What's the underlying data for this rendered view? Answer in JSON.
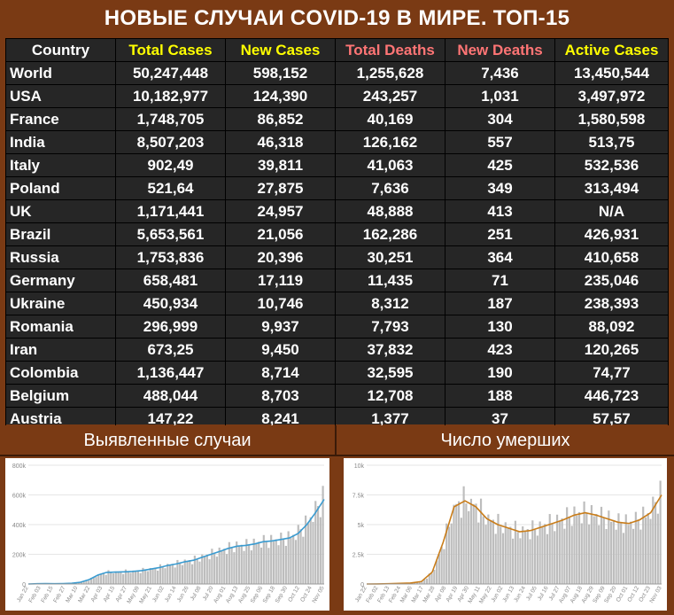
{
  "title": "НОВЫЕ СЛУЧАИ COVID-19 В МИРЕ. ТОП-15",
  "colors": {
    "background": "#7a3a14",
    "table_bg": "#262626",
    "header_country": "#ffffff",
    "header_cases": "#ffff00",
    "header_deaths": "#ff7575",
    "header_active": "#ffff00",
    "cases_line": "#3a9bd0",
    "deaths_line": "#c97d1a",
    "bars": "#b5b5b5"
  },
  "table": {
    "headers": [
      "Country",
      "Total Cases",
      "New Cases",
      "Total Deaths",
      "New Deaths",
      "Active Cases"
    ],
    "rows": [
      [
        "World",
        "50,247,448",
        "598,152",
        "1,255,628",
        "7,436",
        "13,450,544"
      ],
      [
        "USA",
        "10,182,977",
        "124,390",
        "243,257",
        "1,031",
        "3,497,972"
      ],
      [
        "France",
        "1,748,705",
        "86,852",
        "40,169",
        "304",
        "1,580,598"
      ],
      [
        "India",
        "8,507,203",
        "46,318",
        "126,162",
        "557",
        "513,75"
      ],
      [
        "Italy",
        "902,49",
        "39,811",
        "41,063",
        "425",
        "532,536"
      ],
      [
        "Poland",
        "521,64",
        "27,875",
        "7,636",
        "349",
        "313,494"
      ],
      [
        "UK",
        "1,171,441",
        "24,957",
        "48,888",
        "413",
        "N/A"
      ],
      [
        "Brazil",
        "5,653,561",
        "21,056",
        "162,286",
        "251",
        "426,931"
      ],
      [
        "Russia",
        "1,753,836",
        "20,396",
        "30,251",
        "364",
        "410,658"
      ],
      [
        "Germany",
        "658,481",
        "17,119",
        "11,435",
        "71",
        "235,046"
      ],
      [
        "Ukraine",
        "450,934",
        "10,746",
        "8,312",
        "187",
        "238,393"
      ],
      [
        "Romania",
        "296,999",
        "9,937",
        "7,793",
        "130",
        "88,092"
      ],
      [
        "Iran",
        "673,25",
        "9,450",
        "37,832",
        "423",
        "120,265"
      ],
      [
        "Colombia",
        "1,136,447",
        "8,714",
        "32,595",
        "190",
        "74,77"
      ],
      [
        "Belgium",
        "488,044",
        "8,703",
        "12,708",
        "188",
        "446,723"
      ],
      [
        "Austria",
        "147,22",
        "8,241",
        "1,377",
        "37",
        "57,57"
      ]
    ]
  },
  "chart_data": [
    {
      "type": "bar",
      "title": "Выявленные случаи",
      "xlabel": "",
      "ylabel": "",
      "ylim": [
        0,
        800000
      ],
      "yticks": [
        "0",
        "200k",
        "400k",
        "600k",
        "800k"
      ],
      "ytick_values": [
        0,
        200000,
        400000,
        600000,
        800000
      ],
      "grid": true,
      "x_ticks": [
        "Jan 22",
        "Feb 03",
        "Feb 15",
        "Feb 27",
        "Mar 10",
        "Mar 22",
        "Apr 03",
        "Apr 15",
        "Apr 27",
        "May 09",
        "May 21",
        "Jun 02",
        "Jun 14",
        "Jun 26",
        "Jul 08",
        "Jul 20",
        "Aug 01",
        "Aug 13",
        "Aug 25",
        "Sep 06",
        "Sep 18",
        "Sep 30",
        "Oct 12",
        "Oct 24",
        "Nov 05"
      ],
      "series": [
        {
          "kind": "line",
          "values": [
            0,
            2000,
            3000,
            2000,
            3000,
            5000,
            12000,
            30000,
            60000,
            78000,
            80000,
            82000,
            85000,
            90000,
            100000,
            110000,
            125000,
            135000,
            150000,
            160000,
            180000,
            200000,
            220000,
            240000,
            255000,
            260000,
            270000,
            285000,
            290000,
            300000,
            310000,
            340000,
            400000,
            480000,
            570000
          ]
        }
      ]
    },
    {
      "type": "bar",
      "title": "Число умерших",
      "xlabel": "",
      "ylabel": "",
      "ylim": [
        0,
        10000
      ],
      "yticks": [
        "0",
        "2.5k",
        "5k",
        "7.5k",
        "10k"
      ],
      "ytick_values": [
        0,
        2500,
        5000,
        7500,
        10000
      ],
      "grid": true,
      "x_ticks": [
        "Jan 22",
        "Feb 02",
        "Feb 13",
        "Feb 24",
        "Mar 06",
        "Mar 17",
        "Mar 28",
        "Apr 08",
        "Apr 19",
        "Apr 30",
        "May 11",
        "May 22",
        "Jun 02",
        "Jun 13",
        "Jun 24",
        "Jul 05",
        "Jul 16",
        "Jul 27",
        "Aug 07",
        "Aug 18",
        "Aug 29",
        "Sep 09",
        "Sep 20",
        "Oct 01",
        "Oct 12",
        "Oct 23",
        "Nov 03"
      ],
      "series": [
        {
          "kind": "line",
          "values": [
            0,
            10,
            20,
            50,
            80,
            200,
            1000,
            3500,
            6500,
            7000,
            6500,
            5500,
            5000,
            4700,
            4400,
            4500,
            4800,
            5100,
            5400,
            5800,
            6000,
            5800,
            5500,
            5200,
            5100,
            5400,
            6000,
            7500
          ]
        }
      ]
    }
  ]
}
